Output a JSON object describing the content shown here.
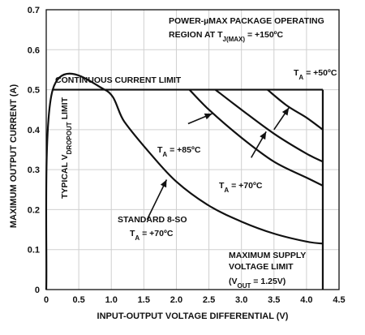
{
  "chart_data": {
    "type": "line",
    "title": "",
    "xlabel": "INPUT-OUTPUT VOLTAGE DIFFERENTIAL (V)",
    "ylabel": "MAXIMUM OUTPUT CURRENT (A)",
    "xlim": [
      0,
      4.5
    ],
    "ylim": [
      0,
      0.7
    ],
    "x_ticks": [
      "0",
      "0.5",
      "1.0",
      "1.5",
      "2.0",
      "2.5",
      "3.0",
      "3.5",
      "4.0",
      "4.5"
    ],
    "y_ticks": [
      "0",
      "0.1",
      "0.2",
      "0.3",
      "0.4",
      "0.5",
      "0.6",
      "0.7"
    ],
    "grid": true,
    "series": [
      {
        "x": [
          0,
          0.1,
          0.9,
          1.2,
          1.6,
          2.0,
          2.5,
          3.0,
          3.5,
          4.0,
          4.25
        ],
        "y": [
          0,
          0.5,
          0.5,
          0.42,
          0.34,
          0.27,
          0.21,
          0.17,
          0.14,
          0.12,
          0.115
        ]
      },
      {
        "x": [
          2.2,
          2.5,
          3.0,
          3.5,
          4.0,
          4.25
        ],
        "y": [
          0.5,
          0.45,
          0.38,
          0.32,
          0.28,
          0.26
        ]
      },
      {
        "x": [
          2.6,
          3.0,
          3.5,
          4.0,
          4.25
        ],
        "y": [
          0.5,
          0.45,
          0.39,
          0.34,
          0.32
        ]
      },
      {
        "x": [
          3.4,
          3.7,
          4.0,
          4.25
        ],
        "y": [
          0.5,
          0.46,
          0.43,
          0.4
        ]
      },
      {
        "x": [
          0.1,
          4.25
        ],
        "y": [
          0.5,
          0.5
        ]
      },
      {
        "x": [
          4.25,
          4.25
        ],
        "y": [
          0,
          0.5
        ]
      }
    ],
    "annotations": [
      {
        "id": "pkg1",
        "text": "POWER-µMAX PACKAGE OPERATING"
      },
      {
        "id": "pkg2",
        "text": "REGION AT T",
        "sub": "J(MAX)",
        "tail": " = +150ºC"
      },
      {
        "id": "ta50",
        "text": "T",
        "sub": "A",
        "tail": " = +50ºC"
      },
      {
        "id": "ta85",
        "text": "T",
        "sub": "A",
        "tail": " = +85ºC"
      },
      {
        "id": "ta70",
        "text": "T",
        "sub": "A",
        "tail": " = +70ºC"
      },
      {
        "id": "std1",
        "text": "STANDARD 8-SO"
      },
      {
        "id": "std2",
        "text": "T",
        "sub": "A",
        "tail": " = +70ºC"
      },
      {
        "id": "cont",
        "text": "CONTINUOUS CURRENT LIMIT"
      },
      {
        "id": "drop",
        "text": "TYPICAL V",
        "sub": "DROPOUT",
        "tail": " LIMIT"
      },
      {
        "id": "sup1",
        "text": "MAXIMUM SUPPLY"
      },
      {
        "id": "sup2",
        "text": "VOLTAGE LIMIT"
      },
      {
        "id": "sup3",
        "text": "(V",
        "sub": "OUT",
        "tail": " = 1.25V)"
      }
    ]
  }
}
